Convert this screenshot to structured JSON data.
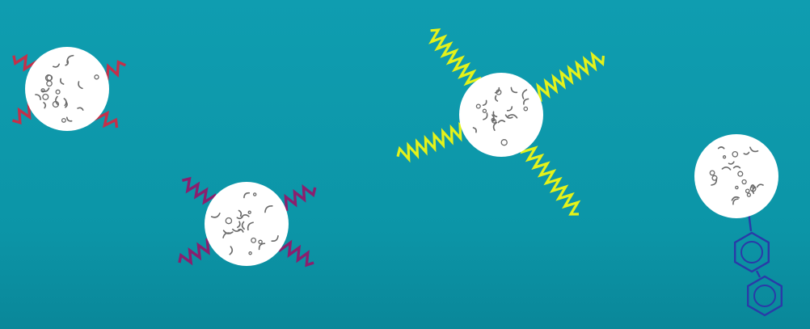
{
  "scene": {
    "background_color": "#0f9bad",
    "particle_fill": "#ffffff",
    "particle_texture_color": "#6a6a6a"
  },
  "particles": [
    {
      "name": "particle-red-short-linkers",
      "linker_color": "#c3304a",
      "linker_style": "short-zigzag",
      "linker_count": 4
    },
    {
      "name": "particle-purple-linkers",
      "linker_color": "#8a1f6e",
      "linker_style": "zigzag",
      "linker_count": 4
    },
    {
      "name": "particle-yellow-long-linkers",
      "linker_color": "#e4f21a",
      "linker_style": "long-zigzag",
      "linker_count": 4
    },
    {
      "name": "particle-biphenyl-ligand",
      "linker_color": "#2a3aa8",
      "linker_style": "biphenyl",
      "linker_count": 1
    }
  ]
}
